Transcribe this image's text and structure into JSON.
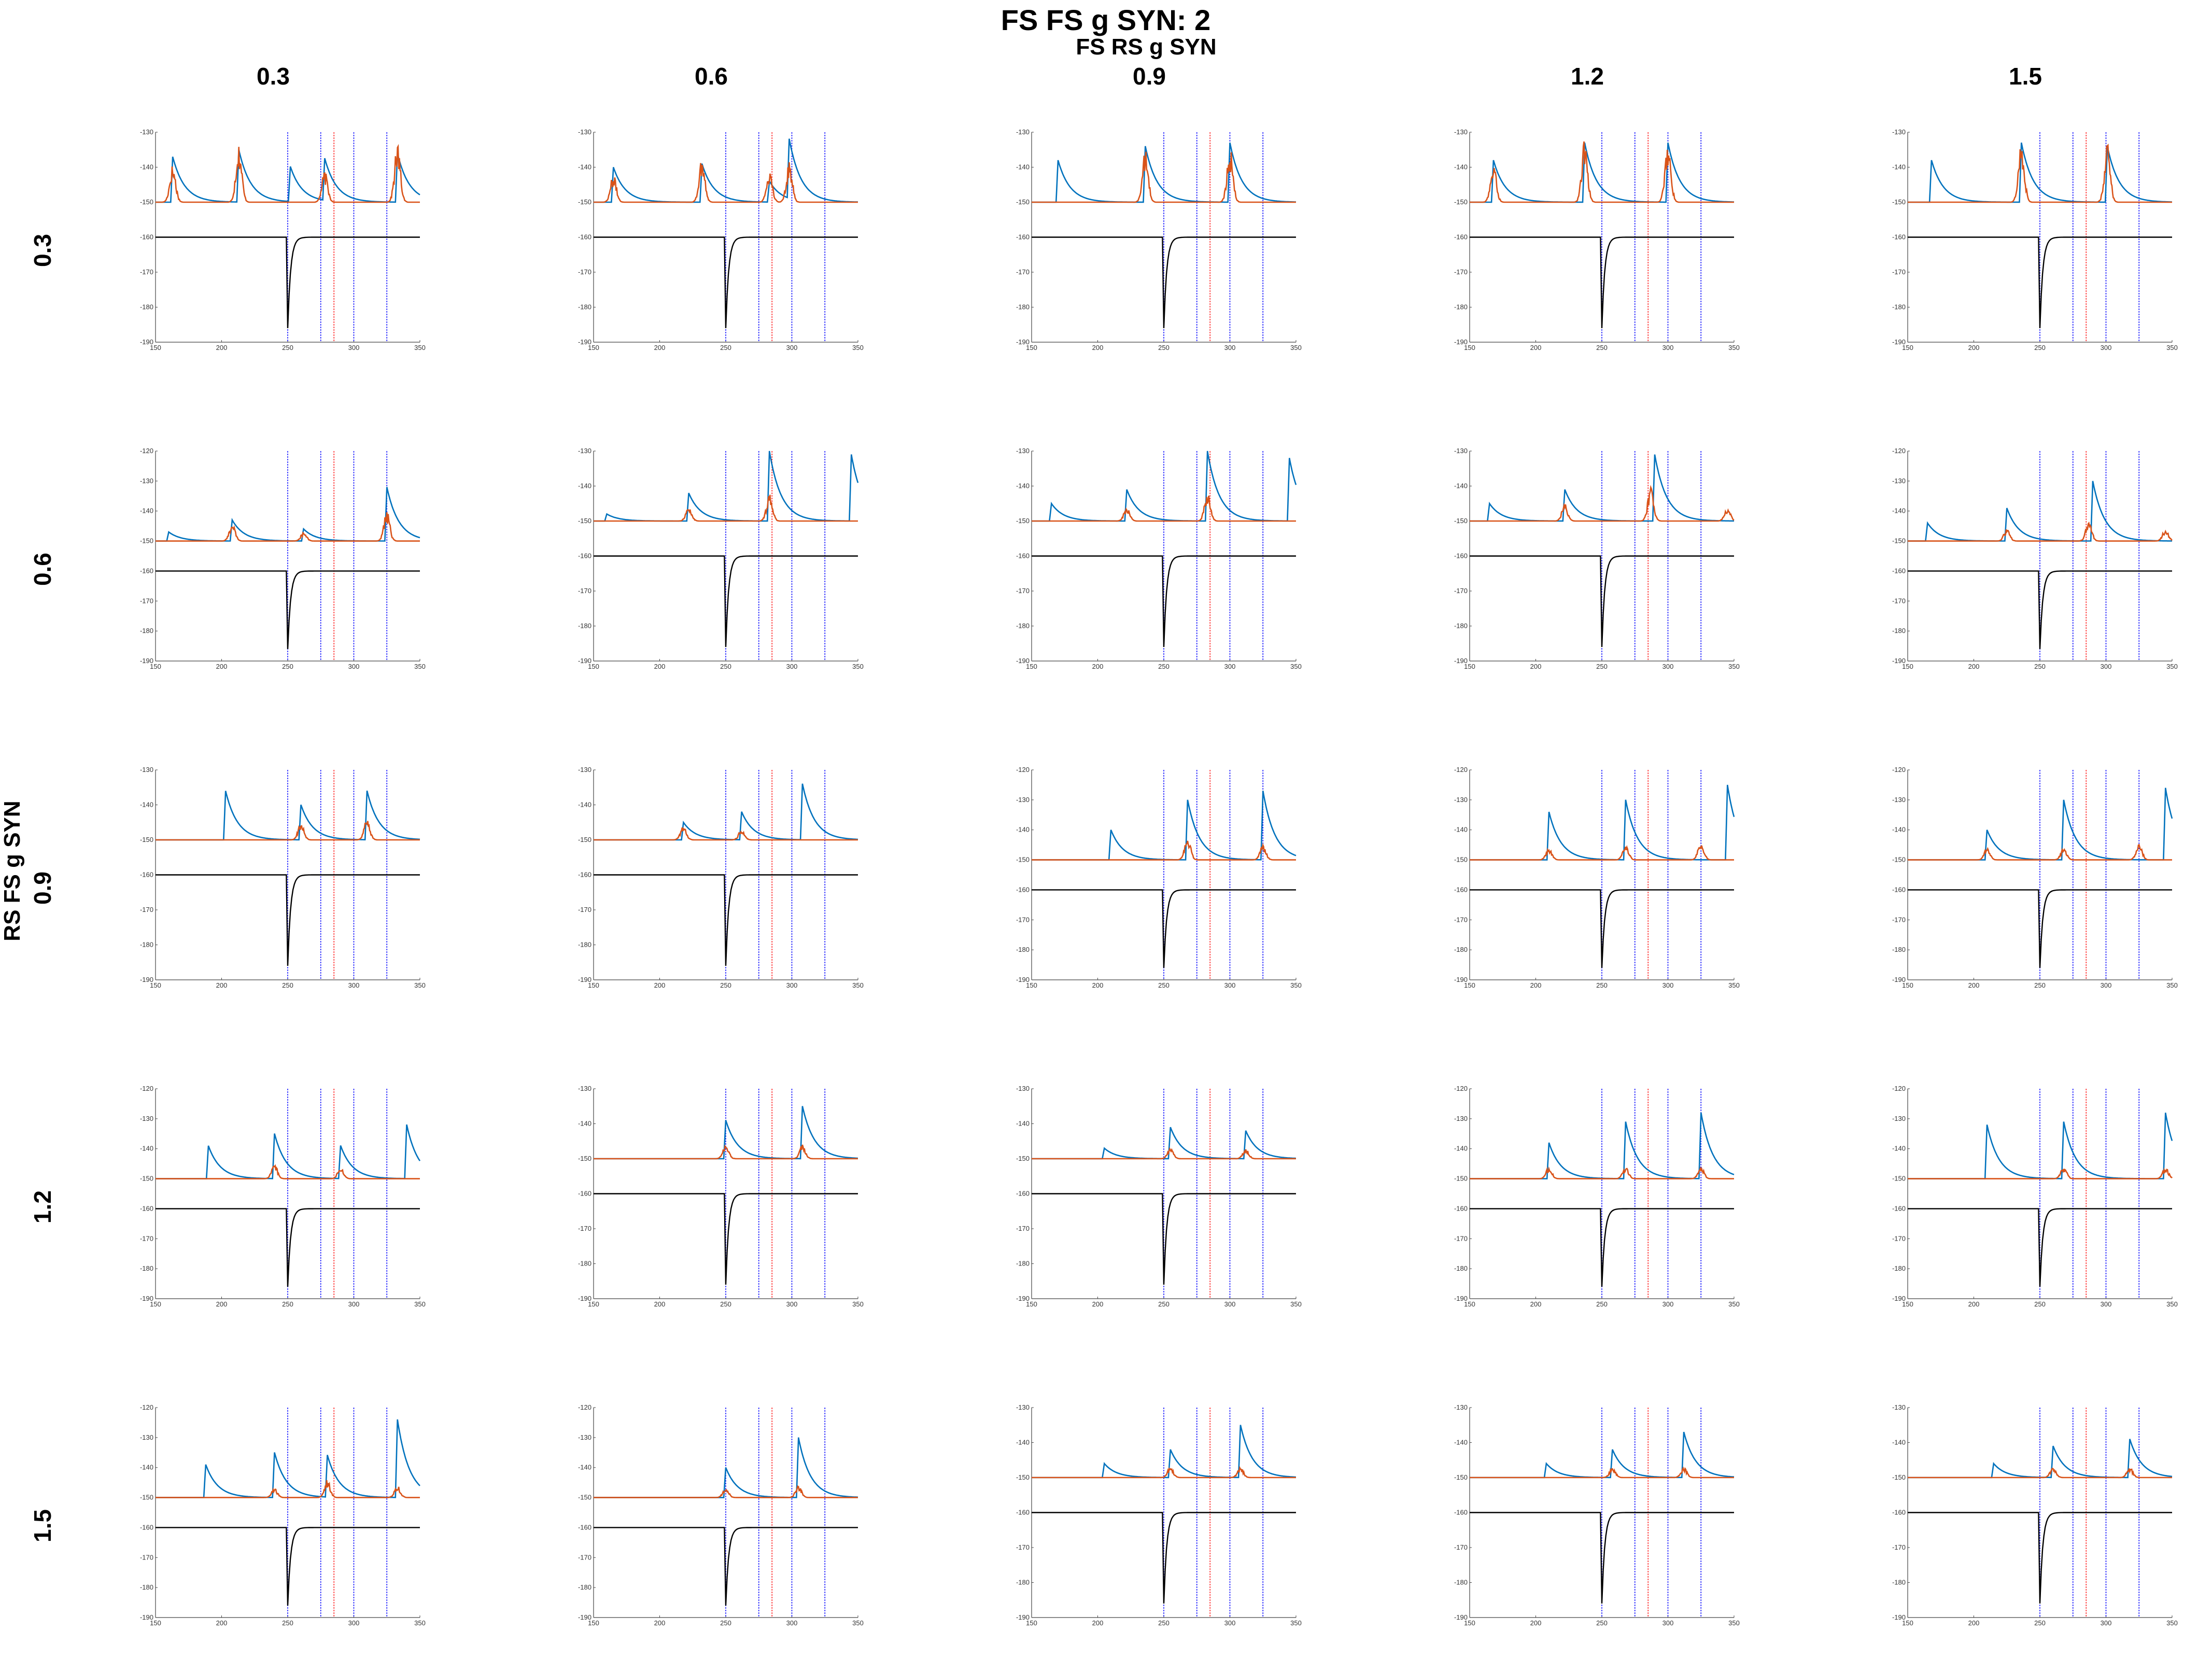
{
  "figure": {
    "title": "FS FS g SYN: 2",
    "x_group_label": "FS RS g SYN",
    "y_group_label": "RS FS g SYN",
    "col_values": [
      "0.3",
      "0.6",
      "0.9",
      "1.2",
      "1.5"
    ],
    "row_values": [
      "0.3",
      "0.6",
      "0.9",
      "1.2",
      "1.5"
    ],
    "colors": {
      "blue": "#0072BD",
      "orange": "#D95319",
      "black": "#000000",
      "vline_blue": "#1a1aff",
      "vline_red": "#ff2a2a"
    }
  },
  "chart_data": {
    "type": "line",
    "layout": "5x5 grid of small multiples",
    "x_range": [
      150,
      350
    ],
    "x_ticks": [
      150,
      200,
      250,
      300,
      350
    ],
    "blue_vlines": [
      250,
      275,
      300,
      325
    ],
    "red_vline": 285,
    "black_trace": {
      "baseline": -160,
      "dip_time": 250,
      "dip_min": -186
    },
    "panels": [
      {
        "row": 0,
        "col": 0,
        "yticks": [
          -130,
          -140,
          -150,
          -160,
          -170,
          -180,
          -190
        ],
        "ylim": [
          -190,
          -130
        ],
        "burst_level": -150,
        "blue_peaks": [
          [
            163,
            -137
          ],
          [
            213,
            -135
          ],
          [
            252,
            -140
          ],
          [
            278,
            -138
          ],
          [
            333,
            -136
          ]
        ],
        "orange_peaks": [
          [
            163,
            -139
          ],
          [
            213,
            -133
          ],
          [
            278,
            -141
          ],
          [
            333,
            -133
          ]
        ]
      },
      {
        "row": 0,
        "col": 1,
        "yticks": [
          -130,
          -140,
          -150,
          -160,
          -170,
          -180,
          -190
        ],
        "ylim": [
          -190,
          -130
        ],
        "burst_level": -150,
        "blue_peaks": [
          [
            165,
            -140
          ],
          [
            232,
            -139
          ],
          [
            283,
            -144
          ],
          [
            298,
            -133
          ]
        ],
        "orange_peaks": [
          [
            165,
            -142
          ],
          [
            232,
            -137
          ],
          [
            283,
            -141
          ],
          [
            298,
            -138
          ]
        ]
      },
      {
        "row": 0,
        "col": 2,
        "yticks": [
          -130,
          -140,
          -150,
          -160,
          -170,
          -180,
          -190
        ],
        "ylim": [
          -190,
          -130
        ],
        "burst_level": -150,
        "blue_peaks": [
          [
            170,
            -138
          ],
          [
            236,
            -134
          ],
          [
            300,
            -133
          ]
        ],
        "orange_peaks": [
          [
            236,
            -135
          ],
          [
            300,
            -134
          ]
        ]
      },
      {
        "row": 0,
        "col": 3,
        "yticks": [
          -130,
          -140,
          -150,
          -160,
          -170,
          -180,
          -190
        ],
        "ylim": [
          -190,
          -130
        ],
        "burst_level": -150,
        "blue_peaks": [
          [
            168,
            -138
          ],
          [
            237,
            -133
          ],
          [
            300,
            -133
          ]
        ],
        "orange_peaks": [
          [
            168,
            -139
          ],
          [
            237,
            -132
          ],
          [
            300,
            -132
          ]
        ]
      },
      {
        "row": 0,
        "col": 4,
        "yticks": [
          -130,
          -140,
          -150,
          -160,
          -170,
          -180,
          -190
        ],
        "ylim": [
          -190,
          -130
        ],
        "burst_level": -150,
        "blue_peaks": [
          [
            168,
            -138
          ],
          [
            236,
            -133
          ],
          [
            301,
            -134
          ]
        ],
        "orange_peaks": [
          [
            236,
            -132
          ],
          [
            301,
            -133
          ]
        ]
      },
      {
        "row": 1,
        "col": 0,
        "yticks": [
          -120,
          -130,
          -140,
          -150,
          -160,
          -170,
          -180,
          -190
        ],
        "ylim": [
          -190,
          -120
        ],
        "burst_level": -150,
        "blue_peaks": [
          [
            160,
            -147
          ],
          [
            208,
            -143
          ],
          [
            262,
            -146
          ],
          [
            325,
            -132
          ]
        ],
        "orange_peaks": [
          [
            208,
            -144
          ],
          [
            262,
            -147
          ],
          [
            325,
            -140
          ]
        ]
      },
      {
        "row": 1,
        "col": 1,
        "yticks": [
          -130,
          -140,
          -150,
          -160,
          -170,
          -180,
          -190
        ],
        "ylim": [
          -190,
          -130
        ],
        "burst_level": -150,
        "blue_peaks": [
          [
            160,
            -148
          ],
          [
            222,
            -142
          ],
          [
            283,
            -130
          ],
          [
            345,
            -131
          ]
        ],
        "orange_peaks": [
          [
            222,
            -146
          ],
          [
            283,
            -142
          ]
        ]
      },
      {
        "row": 1,
        "col": 2,
        "yticks": [
          -130,
          -140,
          -150,
          -160,
          -170,
          -180,
          -190
        ],
        "ylim": [
          -190,
          -130
        ],
        "burst_level": -150,
        "blue_peaks": [
          [
            165,
            -145
          ],
          [
            222,
            -141
          ],
          [
            283,
            -130
          ],
          [
            345,
            -132
          ]
        ],
        "orange_peaks": [
          [
            222,
            -146
          ],
          [
            283,
            -142
          ]
        ]
      },
      {
        "row": 1,
        "col": 3,
        "yticks": [
          -130,
          -140,
          -150,
          -160,
          -170,
          -180,
          -190
        ],
        "ylim": [
          -190,
          -130
        ],
        "burst_level": -150,
        "blue_peaks": [
          [
            165,
            -145
          ],
          [
            222,
            -141
          ],
          [
            290,
            -131
          ]
        ],
        "orange_peaks": [
          [
            222,
            -145
          ],
          [
            287,
            -140
          ],
          [
            345,
            -146
          ]
        ]
      },
      {
        "row": 1,
        "col": 4,
        "yticks": [
          -120,
          -130,
          -140,
          -150,
          -160,
          -170,
          -180,
          -190
        ],
        "ylim": [
          -190,
          -120
        ],
        "burst_level": -150,
        "blue_peaks": [
          [
            165,
            -144
          ],
          [
            225,
            -139
          ],
          [
            290,
            -130
          ]
        ],
        "orange_peaks": [
          [
            225,
            -146
          ],
          [
            287,
            -143
          ],
          [
            345,
            -146
          ]
        ]
      },
      {
        "row": 2,
        "col": 0,
        "yticks": [
          -130,
          -140,
          -150,
          -160,
          -170,
          -180,
          -190
        ],
        "ylim": [
          -190,
          -130
        ],
        "burst_level": -150,
        "blue_peaks": [
          [
            203,
            -136
          ],
          [
            260,
            -140
          ],
          [
            310,
            -136
          ]
        ],
        "orange_peaks": [
          [
            260,
            -145
          ],
          [
            310,
            -144
          ]
        ]
      },
      {
        "row": 2,
        "col": 1,
        "yticks": [
          -130,
          -140,
          -150,
          -160,
          -170,
          -180,
          -190
        ],
        "ylim": [
          -190,
          -130
        ],
        "burst_level": -150,
        "blue_peaks": [
          [
            218,
            -145
          ],
          [
            262,
            -142
          ],
          [
            308,
            -134
          ]
        ],
        "orange_peaks": [
          [
            218,
            -146
          ],
          [
            262,
            -147
          ]
        ]
      },
      {
        "row": 2,
        "col": 2,
        "yticks": [
          -120,
          -130,
          -140,
          -150,
          -160,
          -170,
          -180,
          -190
        ],
        "ylim": [
          -190,
          -120
        ],
        "burst_level": -150,
        "blue_peaks": [
          [
            210,
            -140
          ],
          [
            268,
            -130
          ],
          [
            325,
            -127
          ]
        ],
        "orange_peaks": [
          [
            268,
            -142
          ],
          [
            325,
            -145
          ]
        ]
      },
      {
        "row": 2,
        "col": 3,
        "yticks": [
          -120,
          -130,
          -140,
          -150,
          -160,
          -170,
          -180,
          -190
        ],
        "ylim": [
          -190,
          -120
        ],
        "burst_level": -150,
        "blue_peaks": [
          [
            210,
            -134
          ],
          [
            268,
            -130
          ],
          [
            345,
            -125
          ]
        ],
        "orange_peaks": [
          [
            210,
            -146
          ],
          [
            268,
            -145
          ],
          [
            325,
            -144
          ]
        ]
      },
      {
        "row": 2,
        "col": 4,
        "yticks": [
          -120,
          -130,
          -140,
          -150,
          -160,
          -170,
          -180,
          -190
        ],
        "ylim": [
          -190,
          -120
        ],
        "burst_level": -150,
        "blue_peaks": [
          [
            210,
            -140
          ],
          [
            268,
            -130
          ],
          [
            345,
            -126
          ]
        ],
        "orange_peaks": [
          [
            210,
            -146
          ],
          [
            268,
            -146
          ],
          [
            325,
            -144
          ]
        ]
      },
      {
        "row": 3,
        "col": 0,
        "yticks": [
          -120,
          -130,
          -140,
          -150,
          -160,
          -170,
          -180,
          -190
        ],
        "ylim": [
          -190,
          -120
        ],
        "burst_level": -150,
        "blue_peaks": [
          [
            190,
            -139
          ],
          [
            240,
            -135
          ],
          [
            290,
            -139
          ],
          [
            340,
            -132
          ]
        ],
        "orange_peaks": [
          [
            240,
            -145
          ],
          [
            290,
            -146
          ]
        ]
      },
      {
        "row": 3,
        "col": 1,
        "yticks": [
          -130,
          -140,
          -150,
          -160,
          -170,
          -180,
          -190
        ],
        "ylim": [
          -190,
          -130
        ],
        "burst_level": -150,
        "blue_peaks": [
          [
            250,
            -139
          ],
          [
            308,
            -135
          ]
        ],
        "orange_peaks": [
          [
            250,
            -146
          ],
          [
            308,
            -146
          ]
        ]
      },
      {
        "row": 3,
        "col": 2,
        "yticks": [
          -130,
          -140,
          -150,
          -160,
          -170,
          -180,
          -190
        ],
        "ylim": [
          -190,
          -130
        ],
        "burst_level": -150,
        "blue_peaks": [
          [
            205,
            -147
          ],
          [
            255,
            -141
          ],
          [
            312,
            -142
          ]
        ],
        "orange_peaks": [
          [
            255,
            -147
          ],
          [
            312,
            -147
          ]
        ]
      },
      {
        "row": 3,
        "col": 3,
        "yticks": [
          -120,
          -130,
          -140,
          -150,
          -160,
          -170,
          -180,
          -190
        ],
        "ylim": [
          -190,
          -120
        ],
        "burst_level": -150,
        "blue_peaks": [
          [
            210,
            -138
          ],
          [
            268,
            -131
          ],
          [
            325,
            -128
          ]
        ],
        "orange_peaks": [
          [
            210,
            -146
          ],
          [
            268,
            -146
          ],
          [
            325,
            -146
          ]
        ]
      },
      {
        "row": 3,
        "col": 4,
        "yticks": [
          -120,
          -130,
          -140,
          -150,
          -160,
          -170,
          -180,
          -190
        ],
        "ylim": [
          -190,
          -120
        ],
        "burst_level": -150,
        "blue_peaks": [
          [
            210,
            -132
          ],
          [
            268,
            -131
          ],
          [
            345,
            -128
          ]
        ],
        "orange_peaks": [
          [
            268,
            -146
          ],
          [
            345,
            -146
          ]
        ]
      },
      {
        "row": 4,
        "col": 0,
        "yticks": [
          -120,
          -130,
          -140,
          -150,
          -160,
          -170,
          -180,
          -190
        ],
        "ylim": [
          -190,
          -120
        ],
        "burst_level": -150,
        "blue_peaks": [
          [
            188,
            -139
          ],
          [
            240,
            -135
          ],
          [
            280,
            -136
          ],
          [
            333,
            -124
          ]
        ],
        "orange_peaks": [
          [
            240,
            -147
          ],
          [
            280,
            -144
          ],
          [
            333,
            -146
          ]
        ]
      },
      {
        "row": 4,
        "col": 1,
        "yticks": [
          -120,
          -130,
          -140,
          -150,
          -160,
          -170,
          -180,
          -190
        ],
        "ylim": [
          -190,
          -120
        ],
        "burst_level": -150,
        "blue_peaks": [
          [
            250,
            -140
          ],
          [
            305,
            -130
          ]
        ],
        "orange_peaks": [
          [
            250,
            -147
          ],
          [
            305,
            -146
          ]
        ]
      },
      {
        "row": 4,
        "col": 2,
        "yticks": [
          -130,
          -140,
          -150,
          -160,
          -170,
          -180,
          -190
        ],
        "ylim": [
          -190,
          -130
        ],
        "burst_level": -150,
        "blue_peaks": [
          [
            205,
            -146
          ],
          [
            255,
            -142
          ],
          [
            308,
            -135
          ]
        ],
        "orange_peaks": [
          [
            255,
            -147
          ],
          [
            308,
            -147
          ]
        ]
      },
      {
        "row": 4,
        "col": 3,
        "yticks": [
          -130,
          -140,
          -150,
          -160,
          -170,
          -180,
          -190
        ],
        "ylim": [
          -190,
          -130
        ],
        "burst_level": -150,
        "blue_peaks": [
          [
            208,
            -146
          ],
          [
            258,
            -142
          ],
          [
            312,
            -137
          ]
        ],
        "orange_peaks": [
          [
            258,
            -147
          ],
          [
            312,
            -147
          ]
        ]
      },
      {
        "row": 4,
        "col": 4,
        "yticks": [
          -130,
          -140,
          -150,
          -160,
          -170,
          -180,
          -190
        ],
        "ylim": [
          -190,
          -130
        ],
        "burst_level": -150,
        "blue_peaks": [
          [
            215,
            -146
          ],
          [
            260,
            -141
          ],
          [
            318,
            -139
          ]
        ],
        "orange_peaks": [
          [
            260,
            -147
          ],
          [
            318,
            -147
          ]
        ]
      }
    ]
  }
}
